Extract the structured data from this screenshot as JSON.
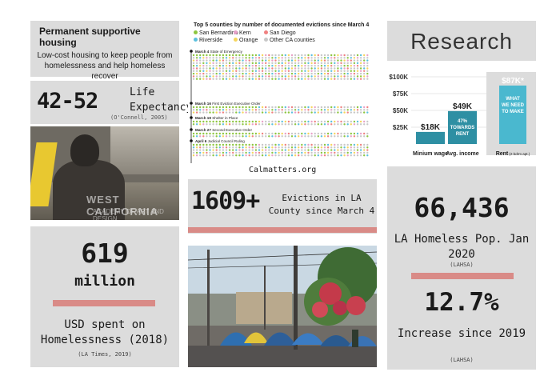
{
  "housing": {
    "title": "Permanent supportive housing",
    "description": "Low-cost housing to keep people from homelessness and help homeless recover"
  },
  "life_expectancy": {
    "value": "42-52",
    "label": "Life Expectancy",
    "source": "(O'Connell, 2005)"
  },
  "photo_watermark": {
    "line1": "WEST CALIFORNIA",
    "line2": "ACADEMY OF ART AND DESIGN"
  },
  "spending": {
    "value": "619",
    "unit": "million",
    "label": "USD spent on Homelessness (2018)",
    "source": "(LA Times, 2019)"
  },
  "evictions_chart": {
    "title": "Top 5 counties by number of documented evictions since March 4",
    "legend": [
      {
        "name": "San Bernardino",
        "color": "#8dc63f"
      },
      {
        "name": "Kern",
        "color": "#e8a0c8"
      },
      {
        "name": "San Diego",
        "color": "#f08080"
      },
      {
        "name": "Riverside",
        "color": "#5bc0de"
      },
      {
        "name": "Orange",
        "color": "#f6d55c"
      },
      {
        "name": "Other CA counties",
        "color": "#c8c8c8"
      }
    ],
    "events": [
      {
        "date": "March 4",
        "label": "State of Emergency"
      },
      {
        "date": "March 16",
        "label": "First Eviction Executive Order"
      },
      {
        "date": "March 19",
        "label": "Shelter in Place"
      },
      {
        "date": "March 27",
        "label": "Second Executive Order"
      },
      {
        "date": "April 6",
        "label": "Judicial Council Ruling"
      }
    ],
    "credit": "Calmatters.org"
  },
  "la_evictions": {
    "value": "1609+",
    "label": "Evictions in LA County since March 4"
  },
  "research": {
    "title": "Research"
  },
  "chart_data": {
    "type": "bar",
    "categories": [
      "Minium wage",
      "Avg. income",
      "Rent"
    ],
    "category_note": "(2-bdrm apt.)",
    "values": [
      18,
      49,
      87
    ],
    "value_labels": [
      "$18K",
      "$49K",
      "$87K*"
    ],
    "inner_labels": [
      "",
      "47% TOWARDS RENT",
      "WHAT WE NEED TO MAKE"
    ],
    "yticks": [
      "$25K",
      "$50K",
      "$75K",
      "$100K"
    ],
    "ylim": [
      0,
      100
    ],
    "colors": {
      "bar": "#2e8fa3",
      "bar_light": "#4ab8cf",
      "bg": "#dcdcdc"
    }
  },
  "homeless": {
    "value": "66,436",
    "label": "LA Homeless Pop. Jan 2020",
    "source": "(LAHSA)",
    "increase_value": "12.7%",
    "increase_label": "Increase since 2019",
    "increase_source": "(LAHSA)"
  }
}
